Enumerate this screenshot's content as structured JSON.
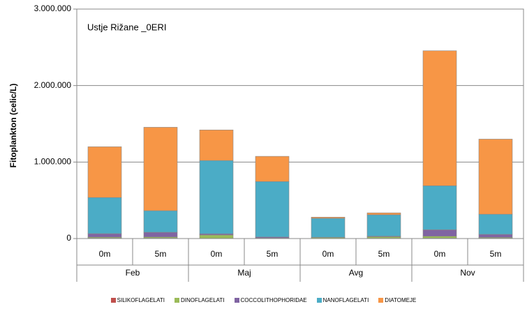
{
  "chart_data": {
    "type": "stacked_bar",
    "title": "Ustje Rižane _0ERI",
    "y_label": "Fitoplankton (celic/L)",
    "categories": [
      "0m",
      "5m",
      "0m",
      "5m",
      "0m",
      "5m",
      "0m",
      "5m"
    ],
    "groups": [
      "Feb",
      "Maj",
      "Avg",
      "Nov"
    ],
    "series": [
      {
        "name": "SILIKOFLAGELATI",
        "color": "#c0504d",
        "values": [
          5000,
          5000,
          2000,
          2000,
          2000,
          3000,
          5000,
          5000
        ]
      },
      {
        "name": "DINOFLAGELATI",
        "color": "#9bbb59",
        "values": [
          13000,
          15000,
          45000,
          5000,
          12000,
          20000,
          25000,
          10000
        ]
      },
      {
        "name": "COCCOLITHOPHORIDAE",
        "color": "#8064a2",
        "values": [
          46000,
          62000,
          15000,
          13000,
          3000,
          8000,
          85000,
          40000
        ]
      },
      {
        "name": "NANOFLAGELATI",
        "color": "#4bacc6",
        "values": [
          472000,
          282000,
          958000,
          725000,
          248000,
          280000,
          575000,
          263000
        ]
      },
      {
        "name": "DIATOMEJE",
        "color": "#f79646",
        "values": [
          664000,
          1091000,
          400000,
          330000,
          15000,
          25000,
          1765000,
          982000
        ]
      }
    ],
    "ylim": [
      0,
      3000000
    ],
    "yticks": [
      0,
      {
        "value": 1000000,
        "label": "1.000.000"
      },
      {
        "value": 2000000,
        "label": "2.000.000"
      },
      {
        "value": 3000000,
        "label": "3.000.000"
      }
    ],
    "grid": true,
    "legend": "bottom"
  }
}
